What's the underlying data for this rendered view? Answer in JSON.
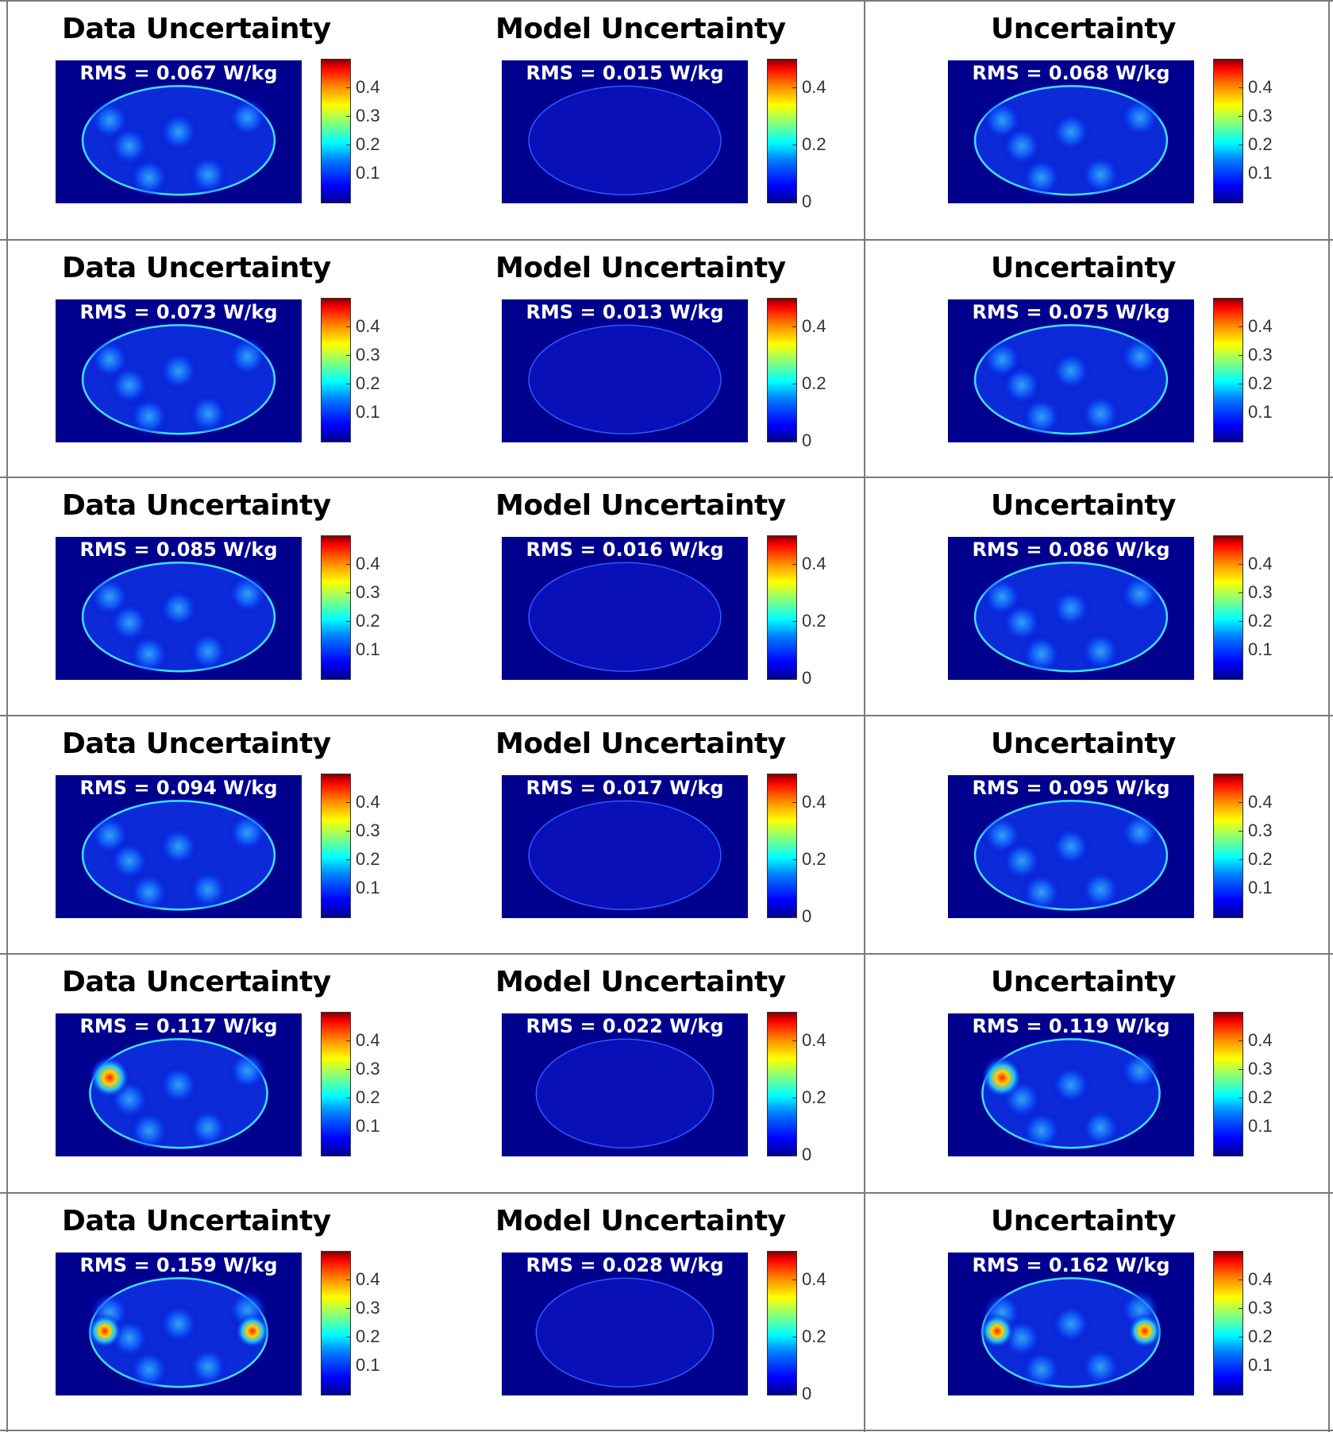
{
  "rows": [
    {
      "cells": [
        {
          "title": "Data Uncertainty",
          "rms": "RMS = 0.067 W/kg",
          "cbar_ticks": [
            "0.4",
            "0.3",
            "0.2",
            "0.1"
          ]
        },
        {
          "title": "Model Uncertainty",
          "rms": "RMS = 0.015 W/kg",
          "cbar_ticks": [
            "0.4",
            "0.2",
            "0"
          ]
        },
        {
          "title": "Uncertainty",
          "rms": "RMS = 0.068 W/kg",
          "cbar_ticks": [
            "0.4",
            "0.3",
            "0.2",
            "0.1"
          ]
        }
      ]
    },
    {
      "cells": [
        {
          "title": "Data Uncertainty",
          "rms": "RMS = 0.073 W/kg",
          "cbar_ticks": [
            "0.4",
            "0.3",
            "0.2",
            "0.1"
          ]
        },
        {
          "title": "Model Uncertainty",
          "rms": "RMS = 0.013 W/kg",
          "cbar_ticks": [
            "0.4",
            "0.2",
            "0"
          ]
        },
        {
          "title": "Uncertainty",
          "rms": "RMS = 0.075 W/kg",
          "cbar_ticks": [
            "0.4",
            "0.3",
            "0.2",
            "0.1"
          ]
        }
      ]
    },
    {
      "cells": [
        {
          "title": "Data Uncertainty",
          "rms": "RMS = 0.085 W/kg",
          "cbar_ticks": [
            "0.4",
            "0.3",
            "0.2",
            "0.1"
          ]
        },
        {
          "title": "Model Uncertainty",
          "rms": "RMS = 0.016 W/kg",
          "cbar_ticks": [
            "0.4",
            "0.2",
            "0"
          ]
        },
        {
          "title": "Uncertainty",
          "rms": "RMS = 0.086 W/kg",
          "cbar_ticks": [
            "0.4",
            "0.3",
            "0.2",
            "0.1"
          ]
        }
      ]
    },
    {
      "cells": [
        {
          "title": "Data Uncertainty",
          "rms": "RMS = 0.094 W/kg",
          "cbar_ticks": [
            "0.4",
            "0.3",
            "0.2",
            "0.1"
          ]
        },
        {
          "title": "Model Uncertainty",
          "rms": "RMS = 0.017 W/kg",
          "cbar_ticks": [
            "0.4",
            "0.2",
            "0"
          ]
        },
        {
          "title": "Uncertainty",
          "rms": "RMS = 0.095 W/kg",
          "cbar_ticks": [
            "0.4",
            "0.3",
            "0.2",
            "0.1"
          ]
        }
      ]
    },
    {
      "cells": [
        {
          "title": "Data Uncertainty",
          "rms": "RMS = 0.117 W/kg",
          "cbar_ticks": [
            "0.4",
            "0.3",
            "0.2",
            "0.1"
          ]
        },
        {
          "title": "Model Uncertainty",
          "rms": "RMS = 0.022 W/kg",
          "cbar_ticks": [
            "0.4",
            "0.2",
            "0"
          ]
        },
        {
          "title": "Uncertainty",
          "rms": "RMS = 0.119 W/kg",
          "cbar_ticks": [
            "0.4",
            "0.3",
            "0.2",
            "0.1"
          ]
        }
      ]
    },
    {
      "cells": [
        {
          "title": "Data Uncertainty",
          "rms": "RMS = 0.159 W/kg",
          "cbar_ticks": [
            "0.4",
            "0.3",
            "0.2",
            "0.1"
          ]
        },
        {
          "title": "Model Uncertainty",
          "rms": "RMS = 0.028 W/kg",
          "cbar_ticks": [
            "0.4",
            "0.2",
            "0"
          ]
        },
        {
          "title": "Uncertainty",
          "rms": "RMS = 0.162 W/kg",
          "cbar_ticks": [
            "0.4",
            "0.3",
            "0.2",
            "0.1"
          ]
        }
      ]
    }
  ],
  "colors": {
    "background": "#00008f",
    "grid_lines": "#7a7a7a"
  }
}
